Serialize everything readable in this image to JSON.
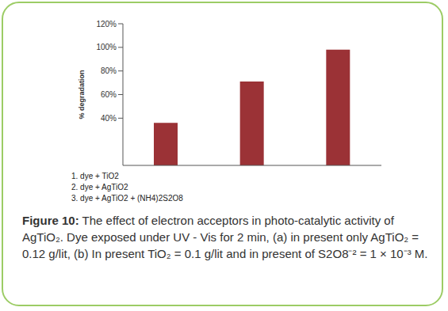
{
  "chart_data": {
    "type": "bar",
    "ylabel": "% degradation",
    "categories": [
      null,
      null,
      null
    ],
    "values": [
      36,
      71,
      98
    ],
    "color": "#9b3236",
    "ylim": [
      0,
      120
    ],
    "yticks": [
      {
        "value": 40,
        "label": "40%"
      },
      {
        "value": 60,
        "label": "60%"
      },
      {
        "value": 80,
        "label": "80%"
      },
      {
        "value": 100,
        "label": "100%"
      },
      {
        "value": 120,
        "label": "120%"
      }
    ],
    "grid": false,
    "tick_labels": "y",
    "annotations": [
      "1. dye + TiO2",
      "2. dye + AgTiO2",
      "3. dye + AgTiO2 + (NH4)2S2O8"
    ],
    "caption": {
      "label": "Figure 10:",
      "text": "The effect of electron acceptors in photo-catalytic activity of AgTiO₂. Dye exposed under UV - Vis for 2 min, (a) in present only AgTiO₂ = 0.12 g/lit, (b) In present TiO₂ = 0.1 g/lit and in present of S2O8⁻² = 1 × 10⁻³ M."
    }
  }
}
